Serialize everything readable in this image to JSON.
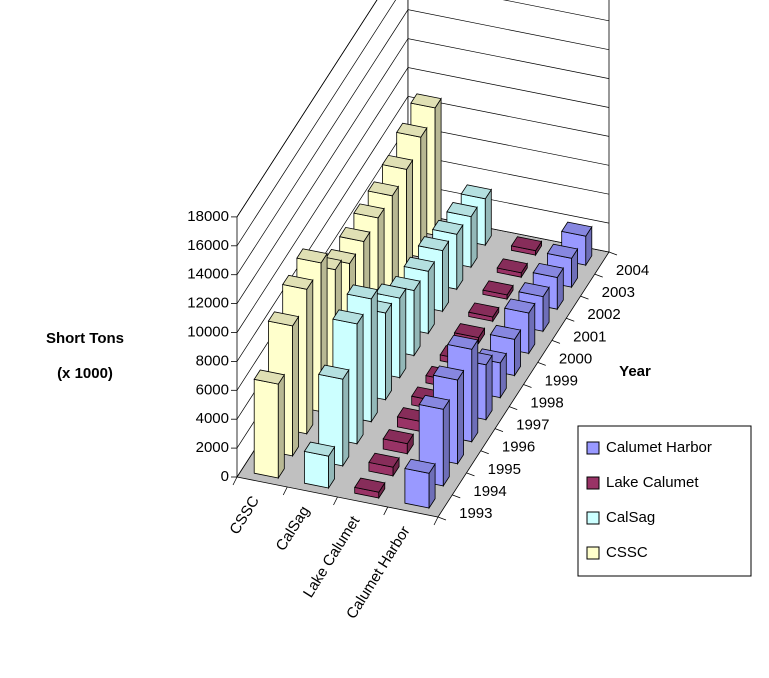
{
  "chart_data": {
    "type": "bar",
    "subtype": "3d-column",
    "ylabel_lines": [
      "Short Tons",
      "(x 1000)"
    ],
    "xlabel": "Year",
    "ylim": [
      0,
      18000
    ],
    "yticks": [
      "0",
      "2000",
      "4000",
      "6000",
      "8000",
      "10000",
      "12000",
      "14000",
      "16000",
      "18000"
    ],
    "years": [
      "1993",
      "1994",
      "1995",
      "1996",
      "1997",
      "1998",
      "1999",
      "2000",
      "2001",
      "2002",
      "2003",
      "2004"
    ],
    "waterways": [
      "CSSC",
      "CalSag",
      "Lake Calumet",
      "Calumet Harbor"
    ],
    "series": [
      {
        "name": "CSSC",
        "color": "#ffffcc",
        "values": [
          6500,
          9000,
          10000,
          10300,
          8300,
          7200,
          7200,
          7300,
          7300,
          7600,
          8300,
          8800
        ]
      },
      {
        "name": "CalSag",
        "color": "#ccffff",
        "values": [
          2200,
          6000,
          8300,
          8500,
          6000,
          5500,
          4500,
          4300,
          4200,
          3800,
          3500,
          3200
        ]
      },
      {
        "name": "Lake Calumet",
        "color": "#993366",
        "values": [
          400,
          600,
          700,
          700,
          600,
          500,
          400,
          400,
          300,
          300,
          300,
          300
        ]
      },
      {
        "name": "Calumet Harbor",
        "color": "#9999ff",
        "values": [
          2400,
          5300,
          5800,
          6400,
          3800,
          2400,
          2500,
          2800,
          2400,
          2200,
          2000,
          2000
        ]
      }
    ],
    "legend": {
      "position": "right",
      "order": [
        "Calumet Harbor",
        "Lake Calumet",
        "CalSag",
        "CSSC"
      ]
    },
    "gridlines": true
  }
}
